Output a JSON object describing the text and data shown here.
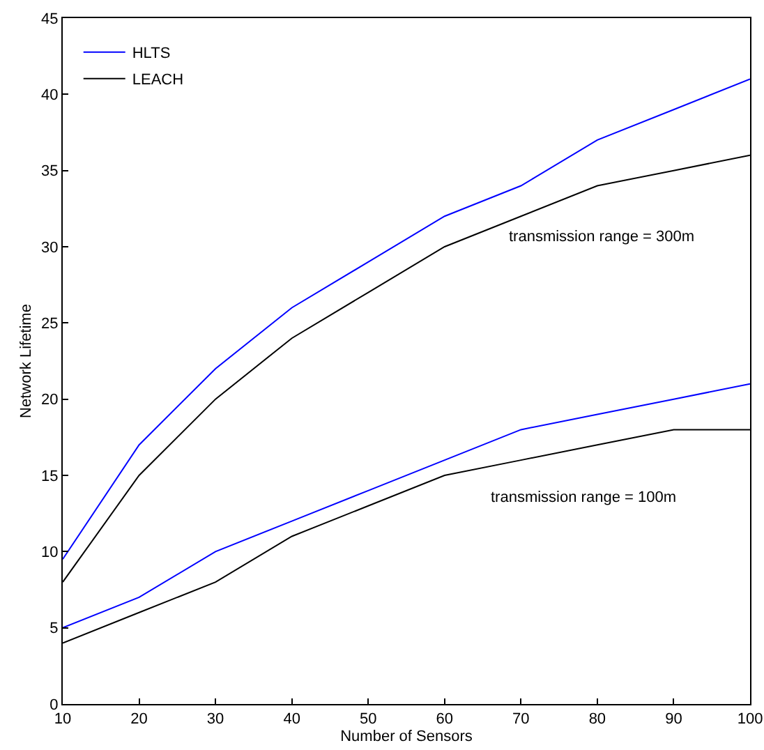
{
  "chart_data": {
    "type": "line",
    "xlabel": "Number of Sensors",
    "ylabel": "Network Lifetime",
    "x": [
      10,
      20,
      30,
      40,
      50,
      60,
      70,
      80,
      90,
      100
    ],
    "series": [
      {
        "name": "HLTS",
        "color": "#0000ff",
        "values": [
          9.5,
          17,
          22,
          26,
          29,
          32,
          34,
          37,
          39,
          41
        ]
      },
      {
        "name": "LEACH",
        "color": "#000000",
        "values": [
          8,
          15,
          20,
          24,
          27,
          30,
          32,
          34,
          35,
          36
        ]
      },
      {
        "color": "#0000ff",
        "values": [
          5,
          7,
          10,
          12,
          14,
          16,
          18,
          19,
          20,
          21
        ]
      },
      {
        "color": "#000000",
        "values": [
          4,
          6,
          8,
          11,
          13,
          15,
          16,
          17,
          18,
          18
        ]
      }
    ],
    "annotations": [
      "transmission range = 300m",
      "transmission range = 100m"
    ],
    "xlim": [
      10,
      100
    ],
    "xticks": [
      10,
      20,
      30,
      40,
      50,
      60,
      70,
      80,
      90,
      100
    ],
    "ylim": [
      0,
      45
    ],
    "yticks": [
      0,
      5,
      10,
      15,
      20,
      25,
      30,
      35,
      40,
      45
    ],
    "grid": false,
    "legend": "top left",
    "marker": "none",
    "line_style": "solid"
  }
}
